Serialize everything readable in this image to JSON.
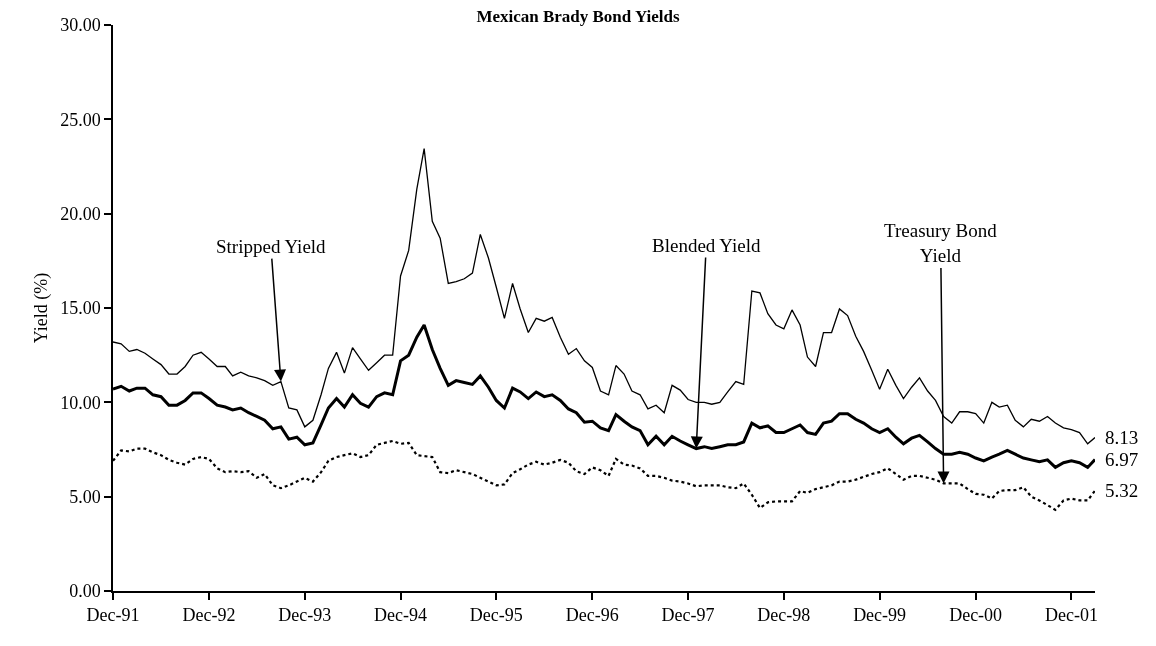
{
  "chart_data": {
    "type": "line",
    "title": "Mexican Brady Bond Yields",
    "ylabel": "Yield (%)",
    "x": [
      "1991-12",
      "1992-01",
      "1992-02",
      "1992-03",
      "1992-04",
      "1992-05",
      "1992-06",
      "1992-07",
      "1992-08",
      "1992-09",
      "1992-10",
      "1992-11",
      "1992-12",
      "1993-01",
      "1993-02",
      "1993-03",
      "1993-04",
      "1993-05",
      "1993-06",
      "1993-07",
      "1993-08",
      "1993-09",
      "1993-10",
      "1993-11",
      "1993-12",
      "1994-01",
      "1994-02",
      "1994-03",
      "1994-04",
      "1994-05",
      "1994-06",
      "1994-07",
      "1994-08",
      "1994-09",
      "1994-10",
      "1994-11",
      "1994-12",
      "1995-01",
      "1995-02",
      "1995-03",
      "1995-04",
      "1995-05",
      "1995-06",
      "1995-07",
      "1995-08",
      "1995-09",
      "1995-10",
      "1995-11",
      "1995-12",
      "1996-01",
      "1996-02",
      "1996-03",
      "1996-04",
      "1996-05",
      "1996-06",
      "1996-07",
      "1996-08",
      "1996-09",
      "1996-10",
      "1996-11",
      "1996-12",
      "1997-01",
      "1997-02",
      "1997-03",
      "1997-04",
      "1997-05",
      "1997-06",
      "1997-07",
      "1997-08",
      "1997-09",
      "1997-10",
      "1997-11",
      "1997-12",
      "1998-01",
      "1998-02",
      "1998-03",
      "1998-04",
      "1998-05",
      "1998-06",
      "1998-07",
      "1998-08",
      "1998-09",
      "1998-10",
      "1998-11",
      "1998-12",
      "1999-01",
      "1999-02",
      "1999-03",
      "1999-04",
      "1999-05",
      "1999-06",
      "1999-07",
      "1999-08",
      "1999-09",
      "1999-10",
      "1999-11",
      "1999-12",
      "2000-01",
      "2000-02",
      "2000-03",
      "2000-04",
      "2000-05",
      "2000-06",
      "2000-07",
      "2000-08",
      "2000-09",
      "2000-10",
      "2000-11",
      "2000-12",
      "2001-01",
      "2001-02",
      "2001-03",
      "2001-04",
      "2001-05",
      "2001-06",
      "2001-07",
      "2001-08",
      "2001-09",
      "2001-10",
      "2001-11",
      "2001-12",
      "2002-01",
      "2002-02",
      "2002-03"
    ],
    "series": [
      {
        "color": "#000000",
        "line_style": "solid",
        "values": [
          13.2,
          13.1,
          12.7,
          12.8,
          12.6,
          12.3,
          12.0,
          11.5,
          11.5,
          11.9,
          12.5,
          12.65,
          12.3,
          11.9,
          11.9,
          11.4,
          11.6,
          11.4,
          11.3,
          11.15,
          10.9,
          11.1,
          9.7,
          9.6,
          8.7,
          9.05,
          10.4,
          11.8,
          12.65,
          11.55,
          12.9,
          12.3,
          11.7,
          12.1,
          12.5,
          12.5,
          16.7,
          18.05,
          21.3,
          23.45,
          19.6,
          18.7,
          16.3,
          16.4,
          16.55,
          16.85,
          18.9,
          17.65,
          16.1,
          14.45,
          16.3,
          14.95,
          13.7,
          14.45,
          14.3,
          14.5,
          13.45,
          12.55,
          12.85,
          12.2,
          11.85,
          10.6,
          10.4,
          11.95,
          11.5,
          10.6,
          10.4,
          9.65,
          9.85,
          9.45,
          10.9,
          10.65,
          10.15,
          10.0,
          10.0,
          9.9,
          10.0,
          10.55,
          11.1,
          10.95,
          15.9,
          15.8,
          14.7,
          14.1,
          13.9,
          14.9,
          14.1,
          12.4,
          11.9,
          13.7,
          13.7,
          14.95,
          14.6,
          13.5,
          12.7,
          11.7,
          10.7,
          11.75,
          10.9,
          10.2,
          10.8,
          11.3,
          10.6,
          10.1,
          9.25,
          8.9,
          9.5,
          9.5,
          9.4,
          8.9,
          10.0,
          9.75,
          9.85,
          9.05,
          8.7,
          9.1,
          9.0,
          9.25,
          8.9,
          8.65,
          8.55,
          8.4,
          7.8,
          8.13
        ]
      },
      {
        "color": "#000000",
        "line_style": "solid",
        "values": [
          10.7,
          10.85,
          10.6,
          10.75,
          10.75,
          10.4,
          10.3,
          9.85,
          9.85,
          10.1,
          10.5,
          10.5,
          10.2,
          9.85,
          9.75,
          9.6,
          9.7,
          9.45,
          9.25,
          9.05,
          8.6,
          8.7,
          8.05,
          8.15,
          7.75,
          7.85,
          8.8,
          9.7,
          10.2,
          9.75,
          10.4,
          9.95,
          9.75,
          10.3,
          10.5,
          10.4,
          12.2,
          12.5,
          13.45,
          14.1,
          12.8,
          11.8,
          10.9,
          11.15,
          11.05,
          10.95,
          11.4,
          10.8,
          10.1,
          9.7,
          10.75,
          10.55,
          10.2,
          10.55,
          10.3,
          10.4,
          10.1,
          9.65,
          9.45,
          8.95,
          9.0,
          8.65,
          8.5,
          9.35,
          9.0,
          8.7,
          8.5,
          7.75,
          8.2,
          7.75,
          8.2,
          7.95,
          7.75,
          7.55,
          7.65,
          7.55,
          7.65,
          7.75,
          7.75,
          7.9,
          8.9,
          8.65,
          8.75,
          8.4,
          8.4,
          8.6,
          8.8,
          8.4,
          8.3,
          8.9,
          9.0,
          9.4,
          9.4,
          9.1,
          8.9,
          8.6,
          8.4,
          8.6,
          8.15,
          7.8,
          8.1,
          8.25,
          7.9,
          7.55,
          7.25,
          7.25,
          7.35,
          7.25,
          7.05,
          6.9,
          7.1,
          7.25,
          7.45,
          7.25,
          7.05,
          6.95,
          6.85,
          6.95,
          6.55,
          6.8,
          6.9,
          6.8,
          6.55,
          6.97
        ]
      },
      {
        "color": "#000000",
        "line_style": "dotted",
        "values": [
          6.9,
          7.45,
          7.4,
          7.55,
          7.55,
          7.35,
          7.2,
          6.95,
          6.8,
          6.7,
          7.0,
          7.1,
          7.0,
          6.5,
          6.3,
          6.35,
          6.3,
          6.35,
          6.0,
          6.2,
          5.6,
          5.45,
          5.6,
          5.8,
          6.0,
          5.8,
          6.3,
          6.9,
          7.1,
          7.2,
          7.3,
          7.1,
          7.2,
          7.75,
          7.85,
          7.95,
          7.8,
          7.85,
          7.2,
          7.15,
          7.1,
          6.3,
          6.25,
          6.4,
          6.3,
          6.2,
          6.0,
          5.8,
          5.6,
          5.65,
          6.25,
          6.45,
          6.7,
          6.85,
          6.7,
          6.8,
          6.95,
          6.8,
          6.35,
          6.2,
          6.55,
          6.4,
          6.1,
          7.0,
          6.7,
          6.65,
          6.5,
          6.1,
          6.1,
          6.0,
          5.85,
          5.8,
          5.7,
          5.55,
          5.6,
          5.6,
          5.6,
          5.5,
          5.45,
          5.7,
          5.1,
          4.4,
          4.7,
          4.75,
          4.75,
          4.75,
          5.3,
          5.2,
          5.4,
          5.5,
          5.6,
          5.8,
          5.8,
          5.9,
          6.05,
          6.2,
          6.3,
          6.5,
          6.2,
          5.9,
          6.1,
          6.1,
          6.0,
          5.9,
          5.7,
          5.7,
          5.7,
          5.4,
          5.15,
          5.1,
          4.9,
          5.3,
          5.35,
          5.35,
          5.5,
          5.0,
          4.8,
          4.55,
          4.3,
          4.8,
          4.9,
          4.8,
          4.8,
          5.32
        ]
      }
    ],
    "annotations": [
      {
        "text": "Stripped Yield",
        "x": "1993-09",
        "y": 11.1
      },
      {
        "text": "Blended Yield",
        "x": "1998-01",
        "y": 7.55
      },
      {
        "text": "Treasury Bond Yield",
        "x": "2000-08",
        "y": 5.7
      },
      {
        "text": "8.13",
        "x": "2002-03",
        "y": 8.13
      },
      {
        "text": "6.97",
        "x": "2002-03",
        "y": 6.97
      },
      {
        "text": "5.32",
        "x": "2002-03",
        "y": 5.32
      }
    ],
    "xlim": [
      "1991-12",
      "2002-03"
    ],
    "xticks": [
      {
        "value": "1991-12",
        "label": "Dec-91"
      },
      {
        "value": "1992-12",
        "label": "Dec-92"
      },
      {
        "value": "1993-12",
        "label": "Dec-93"
      },
      {
        "value": "1994-12",
        "label": "Dec-94"
      },
      {
        "value": "1995-12",
        "label": "Dec-95"
      },
      {
        "value": "1996-12",
        "label": "Dec-96"
      },
      {
        "value": "1997-12",
        "label": "Dec-97"
      },
      {
        "value": "1998-12",
        "label": "Dec-98"
      },
      {
        "value": "1999-12",
        "label": "Dec-99"
      },
      {
        "value": "2000-12",
        "label": "Dec-00"
      },
      {
        "value": "2001-12",
        "label": "Dec-01"
      }
    ],
    "ylim": [
      0,
      30
    ],
    "yticks": [
      {
        "value": 0,
        "label": "0.00"
      },
      {
        "value": 5,
        "label": "5.00"
      },
      {
        "value": 10,
        "label": "10.00"
      },
      {
        "value": 15,
        "label": "15.00"
      },
      {
        "value": 20,
        "label": "20.00"
      },
      {
        "value": 25,
        "label": "25.00"
      },
      {
        "value": 30,
        "label": "30.00"
      }
    ],
    "grid": false,
    "marker": "none"
  }
}
